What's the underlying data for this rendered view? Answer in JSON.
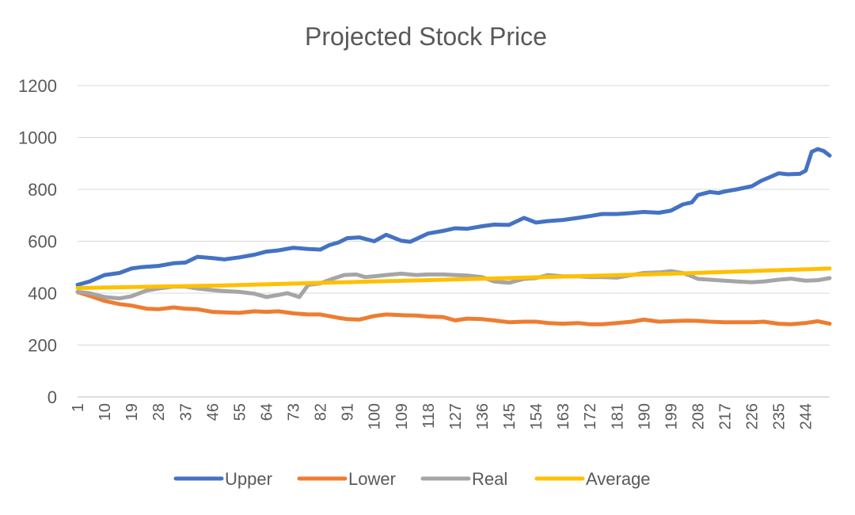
{
  "chart_data": {
    "type": "line",
    "title": "Projected Stock Price",
    "xlabel": "",
    "ylabel": "",
    "xlim": [
      1,
      252
    ],
    "ylim": [
      0,
      1200
    ],
    "yticks": [
      0,
      200,
      400,
      600,
      800,
      1000,
      1200
    ],
    "x_tick_labels": [
      "1",
      "10",
      "19",
      "28",
      "37",
      "46",
      "55",
      "64",
      "73",
      "82",
      "91",
      "100",
      "109",
      "118",
      "127",
      "136",
      "145",
      "154",
      "163",
      "172",
      "181",
      "190",
      "199",
      "208",
      "217",
      "226",
      "235",
      "244"
    ],
    "grid": "horizontal",
    "legend": "bottom",
    "series": [
      {
        "name": "Upper",
        "color": "#4472C4",
        "points": [
          [
            1,
            432
          ],
          [
            5,
            445
          ],
          [
            10,
            470
          ],
          [
            15,
            478
          ],
          [
            19,
            495
          ],
          [
            22,
            500
          ],
          [
            28,
            505
          ],
          [
            33,
            515
          ],
          [
            37,
            518
          ],
          [
            41,
            540
          ],
          [
            46,
            535
          ],
          [
            50,
            530
          ],
          [
            55,
            538
          ],
          [
            60,
            548
          ],
          [
            64,
            560
          ],
          [
            68,
            565
          ],
          [
            73,
            575
          ],
          [
            78,
            570
          ],
          [
            82,
            568
          ],
          [
            85,
            585
          ],
          [
            88,
            595
          ],
          [
            91,
            612
          ],
          [
            95,
            615
          ],
          [
            100,
            600
          ],
          [
            104,
            625
          ],
          [
            109,
            602
          ],
          [
            112,
            598
          ],
          [
            118,
            630
          ],
          [
            123,
            640
          ],
          [
            127,
            650
          ],
          [
            131,
            648
          ],
          [
            136,
            658
          ],
          [
            140,
            664
          ],
          [
            145,
            663
          ],
          [
            150,
            690
          ],
          [
            154,
            672
          ],
          [
            158,
            678
          ],
          [
            163,
            682
          ],
          [
            168,
            690
          ],
          [
            172,
            697
          ],
          [
            176,
            705
          ],
          [
            181,
            705
          ],
          [
            185,
            708
          ],
          [
            190,
            713
          ],
          [
            195,
            710
          ],
          [
            199,
            718
          ],
          [
            203,
            742
          ],
          [
            206,
            750
          ],
          [
            208,
            778
          ],
          [
            212,
            790
          ],
          [
            215,
            786
          ],
          [
            217,
            792
          ],
          [
            221,
            800
          ],
          [
            226,
            812
          ],
          [
            229,
            832
          ],
          [
            233,
            852
          ],
          [
            235,
            862
          ],
          [
            238,
            858
          ],
          [
            242,
            860
          ],
          [
            244,
            872
          ],
          [
            246,
            945
          ],
          [
            248,
            955
          ],
          [
            250,
            948
          ],
          [
            252,
            930
          ]
        ]
      },
      {
        "name": "Lower",
        "color": "#ED7D31",
        "points": [
          [
            1,
            404
          ],
          [
            5,
            390
          ],
          [
            10,
            370
          ],
          [
            15,
            358
          ],
          [
            19,
            352
          ],
          [
            24,
            340
          ],
          [
            28,
            338
          ],
          [
            33,
            345
          ],
          [
            37,
            340
          ],
          [
            41,
            338
          ],
          [
            46,
            328
          ],
          [
            50,
            326
          ],
          [
            55,
            324
          ],
          [
            60,
            330
          ],
          [
            64,
            328
          ],
          [
            68,
            330
          ],
          [
            73,
            322
          ],
          [
            78,
            318
          ],
          [
            82,
            318
          ],
          [
            88,
            305
          ],
          [
            91,
            300
          ],
          [
            95,
            298
          ],
          [
            100,
            312
          ],
          [
            104,
            318
          ],
          [
            109,
            315
          ],
          [
            114,
            314
          ],
          [
            118,
            310
          ],
          [
            123,
            308
          ],
          [
            127,
            295
          ],
          [
            131,
            302
          ],
          [
            136,
            300
          ],
          [
            140,
            295
          ],
          [
            145,
            288
          ],
          [
            150,
            290
          ],
          [
            154,
            290
          ],
          [
            158,
            285
          ],
          [
            163,
            282
          ],
          [
            168,
            285
          ],
          [
            172,
            280
          ],
          [
            176,
            280
          ],
          [
            181,
            285
          ],
          [
            186,
            290
          ],
          [
            190,
            298
          ],
          [
            195,
            290
          ],
          [
            199,
            292
          ],
          [
            204,
            294
          ],
          [
            208,
            293
          ],
          [
            212,
            290
          ],
          [
            217,
            288
          ],
          [
            221,
            288
          ],
          [
            226,
            288
          ],
          [
            230,
            290
          ],
          [
            235,
            282
          ],
          [
            239,
            280
          ],
          [
            244,
            285
          ],
          [
            248,
            292
          ],
          [
            252,
            282
          ]
        ]
      },
      {
        "name": "Real",
        "color": "#A5A5A5",
        "points": [
          [
            1,
            405
          ],
          [
            5,
            400
          ],
          [
            10,
            385
          ],
          [
            15,
            380
          ],
          [
            19,
            388
          ],
          [
            24,
            410
          ],
          [
            28,
            418
          ],
          [
            33,
            425
          ],
          [
            37,
            425
          ],
          [
            41,
            418
          ],
          [
            46,
            412
          ],
          [
            50,
            408
          ],
          [
            55,
            405
          ],
          [
            60,
            398
          ],
          [
            64,
            385
          ],
          [
            68,
            393
          ],
          [
            71,
            400
          ],
          [
            75,
            385
          ],
          [
            78,
            432
          ],
          [
            82,
            438
          ],
          [
            86,
            455
          ],
          [
            90,
            470
          ],
          [
            94,
            472
          ],
          [
            97,
            462
          ],
          [
            100,
            465
          ],
          [
            104,
            470
          ],
          [
            109,
            475
          ],
          [
            114,
            470
          ],
          [
            118,
            472
          ],
          [
            123,
            472
          ],
          [
            127,
            470
          ],
          [
            131,
            468
          ],
          [
            136,
            462
          ],
          [
            140,
            445
          ],
          [
            145,
            440
          ],
          [
            150,
            455
          ],
          [
            154,
            458
          ],
          [
            158,
            470
          ],
          [
            163,
            465
          ],
          [
            168,
            465
          ],
          [
            172,
            462
          ],
          [
            176,
            462
          ],
          [
            181,
            460
          ],
          [
            186,
            470
          ],
          [
            190,
            478
          ],
          [
            195,
            480
          ],
          [
            199,
            485
          ],
          [
            203,
            478
          ],
          [
            206,
            465
          ],
          [
            208,
            455
          ],
          [
            212,
            452
          ],
          [
            217,
            448
          ],
          [
            221,
            445
          ],
          [
            226,
            442
          ],
          [
            230,
            445
          ],
          [
            235,
            452
          ],
          [
            239,
            456
          ],
          [
            244,
            448
          ],
          [
            248,
            450
          ],
          [
            252,
            458
          ]
        ]
      },
      {
        "name": "Average",
        "color": "#FFC000",
        "points": [
          [
            1,
            420
          ],
          [
            50,
            430
          ],
          [
            100,
            445
          ],
          [
            150,
            460
          ],
          [
            200,
            475
          ],
          [
            252,
            495
          ]
        ]
      }
    ]
  }
}
